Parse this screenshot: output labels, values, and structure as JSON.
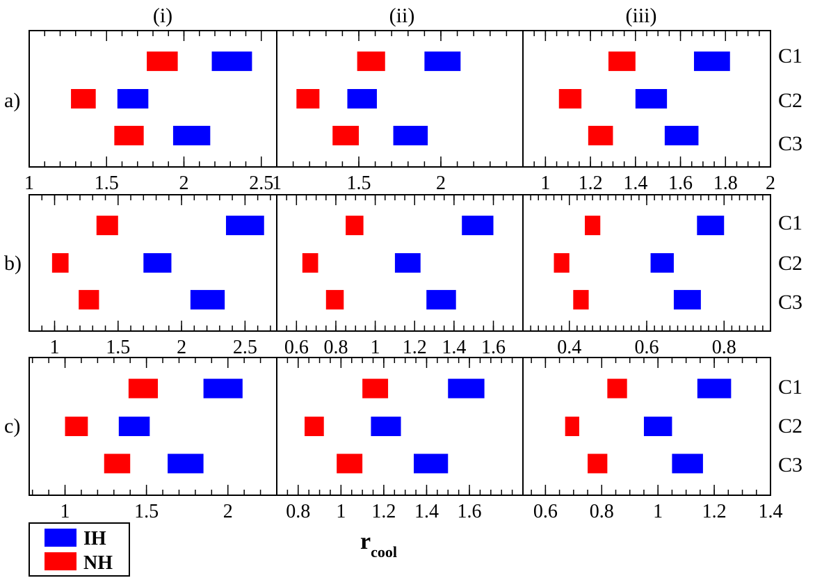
{
  "figure": {
    "xlabel": "r",
    "xlabel_sub": "cool",
    "column_labels": [
      "(i)",
      "(ii)",
      "(iii)"
    ],
    "row_labels": [
      "a)",
      "b)",
      "c)"
    ],
    "case_labels": [
      "C1",
      "C2",
      "C3"
    ],
    "legend": [
      {
        "name": "IH",
        "color": "#0000ff"
      },
      {
        "name": "NH",
        "color": "#ff0000"
      }
    ]
  },
  "chart_data": [
    {
      "type": "bar",
      "row": "a)",
      "column": "(i)",
      "xlim": [
        1,
        2.6
      ],
      "ticks": [
        {
          "v": 1,
          "t": "1"
        },
        {
          "v": 1.5,
          "t": "1.5"
        },
        {
          "v": 2,
          "t": "2"
        },
        {
          "v": 2.5,
          "t": "2.5"
        }
      ],
      "minor_step": 0.1,
      "tick_labels_below": true,
      "series": [
        {
          "name": "IH",
          "ranges": [
            [
              2.18,
              2.44
            ],
            [
              1.57,
              1.77
            ],
            [
              1.93,
              2.17
            ]
          ]
        },
        {
          "name": "NH",
          "ranges": [
            [
              1.76,
              1.96
            ],
            [
              1.27,
              1.43
            ],
            [
              1.55,
              1.74
            ]
          ]
        }
      ]
    },
    {
      "type": "bar",
      "row": "a)",
      "column": "(ii)",
      "xlim": [
        1,
        2.5
      ],
      "ticks": [
        {
          "v": 1,
          "t": "1"
        },
        {
          "v": 1.5,
          "t": "1.5"
        },
        {
          "v": 2,
          "t": "2"
        }
      ],
      "minor_step": 0.1,
      "tick_labels_below": true,
      "series": [
        {
          "name": "IH",
          "ranges": [
            [
              1.9,
              2.12
            ],
            [
              1.43,
              1.61
            ],
            [
              1.71,
              1.92
            ]
          ]
        },
        {
          "name": "NH",
          "ranges": [
            [
              1.49,
              1.66
            ],
            [
              1.12,
              1.26
            ],
            [
              1.34,
              1.5
            ]
          ]
        }
      ]
    },
    {
      "type": "bar",
      "row": "a)",
      "column": "(iii)",
      "xlim": [
        0.9,
        2
      ],
      "ticks": [
        {
          "v": 1,
          "t": "1"
        },
        {
          "v": 1.2,
          "t": "1.2"
        },
        {
          "v": 1.4,
          "t": "1.4"
        },
        {
          "v": 1.6,
          "t": "1.6"
        },
        {
          "v": 1.8,
          "t": "1.8"
        },
        {
          "v": 2,
          "t": "2"
        }
      ],
      "minor_step": 0.05,
      "tick_labels_below": true,
      "series": [
        {
          "name": "IH",
          "ranges": [
            [
              1.66,
              1.82
            ],
            [
              1.4,
              1.54
            ],
            [
              1.53,
              1.68
            ]
          ]
        },
        {
          "name": "NH",
          "ranges": [
            [
              1.28,
              1.4
            ],
            [
              1.06,
              1.16
            ],
            [
              1.19,
              1.3
            ]
          ]
        }
      ]
    },
    {
      "type": "bar",
      "row": "b)",
      "column": "(i)",
      "xlim": [
        0.8,
        2.75
      ],
      "ticks": [
        {
          "v": 1,
          "t": "1"
        },
        {
          "v": 1.5,
          "t": "1.5"
        },
        {
          "v": 2,
          "t": "2"
        },
        {
          "v": 2.5,
          "t": "2.5"
        }
      ],
      "minor_step": 0.1,
      "tick_labels_below": true,
      "series": [
        {
          "name": "IH",
          "ranges": [
            [
              2.35,
              2.65
            ],
            [
              1.7,
              1.92
            ],
            [
              2.07,
              2.34
            ]
          ]
        },
        {
          "name": "NH",
          "ranges": [
            [
              1.33,
              1.5
            ],
            [
              0.98,
              1.11
            ],
            [
              1.19,
              1.35
            ]
          ]
        }
      ]
    },
    {
      "type": "bar",
      "row": "b)",
      "column": "(ii)",
      "xlim": [
        0.5,
        1.75
      ],
      "ticks": [
        {
          "v": 0.6,
          "t": "0.6"
        },
        {
          "v": 0.8,
          "t": "0.8"
        },
        {
          "v": 1,
          "t": "1"
        },
        {
          "v": 1.2,
          "t": "1.2"
        },
        {
          "v": 1.4,
          "t": "1.4"
        },
        {
          "v": 1.6,
          "t": "1.6"
        }
      ],
      "minor_step": 0.05,
      "tick_labels_below": true,
      "series": [
        {
          "name": "IH",
          "ranges": [
            [
              1.44,
              1.6
            ],
            [
              1.1,
              1.23
            ],
            [
              1.26,
              1.41
            ]
          ]
        },
        {
          "name": "NH",
          "ranges": [
            [
              0.85,
              0.94
            ],
            [
              0.63,
              0.71
            ],
            [
              0.75,
              0.84
            ]
          ]
        }
      ]
    },
    {
      "type": "bar",
      "row": "b)",
      "column": "(iii)",
      "xlim": [
        0.28,
        0.92
      ],
      "ticks": [
        {
          "v": 0.4,
          "t": "0.4"
        },
        {
          "v": 0.6,
          "t": "0.6"
        },
        {
          "v": 0.8,
          "t": "0.8"
        }
      ],
      "minor_step": 0.02,
      "tick_labels_below": true,
      "series": [
        {
          "name": "IH",
          "ranges": [
            [
              0.73,
              0.8
            ],
            [
              0.61,
              0.67
            ],
            [
              0.67,
              0.74
            ]
          ]
        },
        {
          "name": "NH",
          "ranges": [
            [
              0.44,
              0.48
            ],
            [
              0.36,
              0.4
            ],
            [
              0.41,
              0.45
            ]
          ]
        }
      ]
    },
    {
      "type": "bar",
      "row": "c)",
      "column": "(i)",
      "xlim": [
        0.78,
        2.3
      ],
      "ticks": [
        {
          "v": 1,
          "t": "1"
        },
        {
          "v": 1.5,
          "t": "1.5"
        },
        {
          "v": 2,
          "t": "2"
        }
      ],
      "minor_step": 0.1,
      "tick_labels_below": true,
      "series": [
        {
          "name": "IH",
          "ranges": [
            [
              1.85,
              2.09
            ],
            [
              1.33,
              1.52
            ],
            [
              1.63,
              1.85
            ]
          ]
        },
        {
          "name": "NH",
          "ranges": [
            [
              1.39,
              1.57
            ],
            [
              1.0,
              1.14
            ],
            [
              1.24,
              1.4
            ]
          ]
        }
      ]
    },
    {
      "type": "bar",
      "row": "c)",
      "column": "(ii)",
      "xlim": [
        0.7,
        1.85
      ],
      "ticks": [
        {
          "v": 0.8,
          "t": "0.8"
        },
        {
          "v": 1,
          "t": "1"
        },
        {
          "v": 1.2,
          "t": "1.2"
        },
        {
          "v": 1.4,
          "t": "1.4"
        },
        {
          "v": 1.6,
          "t": "1.6"
        }
      ],
      "minor_step": 0.05,
      "tick_labels_below": true,
      "series": [
        {
          "name": "IH",
          "ranges": [
            [
              1.5,
              1.67
            ],
            [
              1.14,
              1.28
            ],
            [
              1.34,
              1.5
            ]
          ]
        },
        {
          "name": "NH",
          "ranges": [
            [
              1.1,
              1.22
            ],
            [
              0.83,
              0.92
            ],
            [
              0.98,
              1.1
            ]
          ]
        }
      ]
    },
    {
      "type": "bar",
      "row": "c)",
      "column": "(iii)",
      "xlim": [
        0.52,
        1.4
      ],
      "ticks": [
        {
          "v": 0.6,
          "t": "0.6"
        },
        {
          "v": 0.8,
          "t": "0.8"
        },
        {
          "v": 1,
          "t": "1"
        },
        {
          "v": 1.2,
          "t": "1.2"
        },
        {
          "v": 1.4,
          "t": "1.4"
        }
      ],
      "minor_step": 0.05,
      "tick_labels_below": true,
      "series": [
        {
          "name": "IH",
          "ranges": [
            [
              1.14,
              1.26
            ],
            [
              0.95,
              1.05
            ],
            [
              1.05,
              1.16
            ]
          ]
        },
        {
          "name": "NH",
          "ranges": [
            [
              0.82,
              0.89
            ],
            [
              0.67,
              0.72
            ],
            [
              0.75,
              0.82
            ]
          ]
        }
      ]
    }
  ]
}
